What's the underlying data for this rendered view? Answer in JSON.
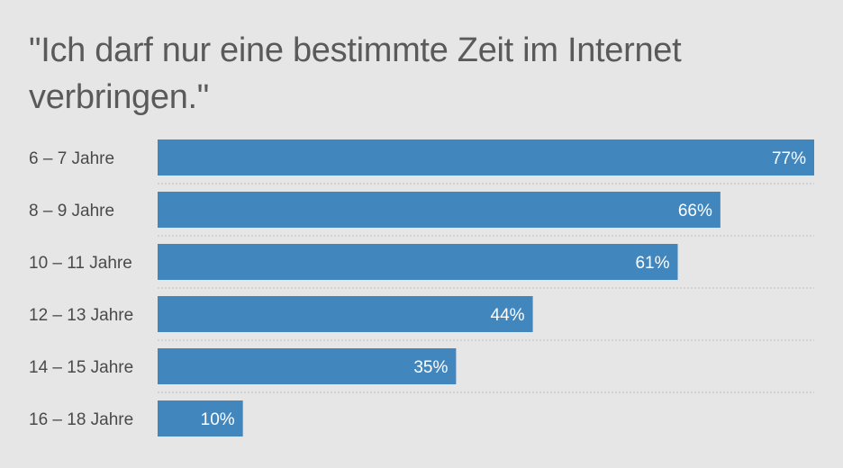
{
  "chart_data": {
    "type": "bar",
    "orientation": "horizontal",
    "title": "\"Ich darf nur eine bestimmte Zeit im Internet verbringen.\"",
    "categories": [
      "6 – 7 Jahre",
      "8 – 9 Jahre",
      "10 – 11 Jahre",
      "12 – 13 Jahre",
      "14 – 15 Jahre",
      "16 – 18 Jahre"
    ],
    "values": [
      77,
      66,
      61,
      44,
      35,
      10
    ],
    "value_labels": [
      "77%",
      "66%",
      "61%",
      "44%",
      "35%",
      "10%"
    ],
    "unit": "%",
    "xlim": [
      0,
      77
    ],
    "grid": false,
    "legend": "none",
    "colors": {
      "bar": "#4286be",
      "background": "#e6e6e6",
      "category_text": "#4a4a4a",
      "value_text": "#ffffff",
      "separator": "#bdbdbd",
      "title_text": "#5a5a5a"
    }
  }
}
